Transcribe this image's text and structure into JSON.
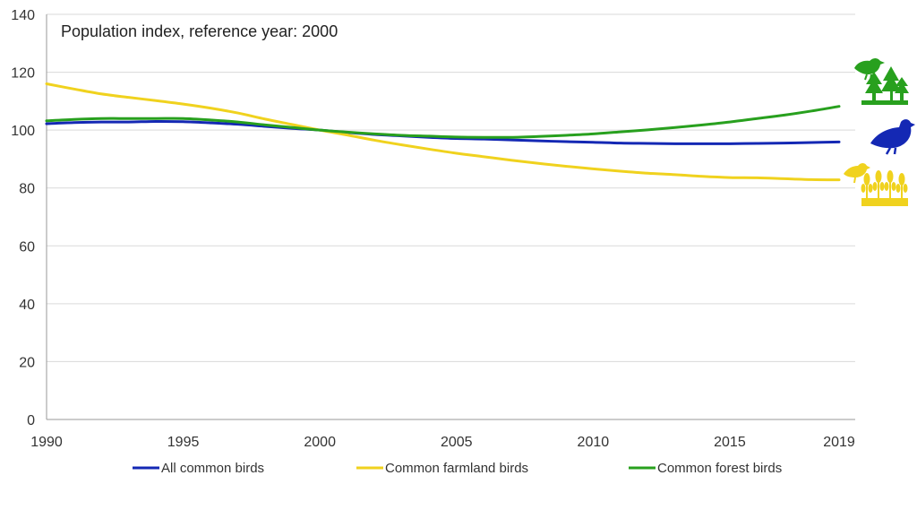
{
  "chart_data": {
    "type": "line",
    "title": "Population index, reference year: 2000",
    "xlabel": "",
    "ylabel": "",
    "xlim": [
      1990,
      2019
    ],
    "ylim": [
      0,
      140
    ],
    "x_ticks": [
      "1990",
      "1995",
      "2000",
      "2005",
      "2010",
      "2015",
      "2019"
    ],
    "y_ticks": [
      "0",
      "20",
      "40",
      "60",
      "80",
      "100",
      "120",
      "140"
    ],
    "grid": "horizontal",
    "legend_position": "bottom",
    "x": [
      1990,
      1991,
      1992,
      1993,
      1994,
      1995,
      1996,
      1997,
      1998,
      1999,
      2000,
      2001,
      2002,
      2003,
      2004,
      2005,
      2006,
      2007,
      2008,
      2009,
      2010,
      2011,
      2012,
      2013,
      2014,
      2015,
      2016,
      2017,
      2018,
      2019
    ],
    "series": [
      {
        "name": "All common birds",
        "color": "#1428b4",
        "icon": "blue-bird-icon",
        "values": [
          102.2,
          102.6,
          102.8,
          102.8,
          103.0,
          102.9,
          102.5,
          102.0,
          101.3,
          100.6,
          100.0,
          99.2,
          98.5,
          98.0,
          97.5,
          97.1,
          96.9,
          96.6,
          96.3,
          96.0,
          95.8,
          95.5,
          95.4,
          95.3,
          95.3,
          95.3,
          95.4,
          95.5,
          95.7,
          95.9
        ]
      },
      {
        "name": "Common farmland birds",
        "color": "#f0d21e",
        "icon": "farmland-bird-wheat-icon",
        "values": [
          116.0,
          114.2,
          112.5,
          111.3,
          110.2,
          109.0,
          107.6,
          105.9,
          103.8,
          101.9,
          100.0,
          98.3,
          96.5,
          94.9,
          93.4,
          92.0,
          90.8,
          89.6,
          88.5,
          87.5,
          86.6,
          85.8,
          85.1,
          84.6,
          84.0,
          83.6,
          83.5,
          83.2,
          82.9,
          82.8
        ]
      },
      {
        "name": "Common forest birds",
        "color": "#28a01e",
        "icon": "forest-bird-trees-icon",
        "values": [
          103.2,
          103.7,
          104.0,
          104.0,
          104.0,
          104.0,
          103.5,
          102.8,
          101.8,
          100.9,
          100.0,
          99.3,
          98.7,
          98.2,
          97.9,
          97.6,
          97.5,
          97.5,
          97.8,
          98.2,
          98.7,
          99.4,
          100.1,
          100.9,
          101.8,
          102.8,
          104.0,
          105.2,
          106.6,
          108.2
        ]
      }
    ]
  }
}
